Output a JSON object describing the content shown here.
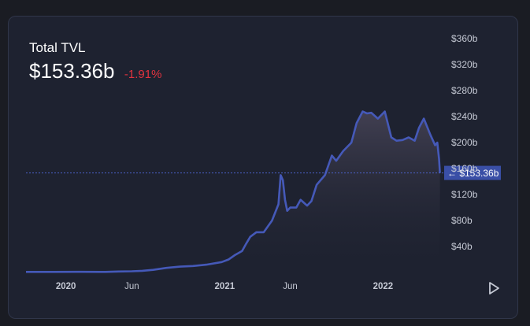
{
  "header": {
    "title": "Total TVL",
    "value": "$153.36b",
    "change": "-1.91%"
  },
  "controls": {
    "play_icon": "play-icon"
  },
  "colors": {
    "background": "#1e2230",
    "line": "#4559b8",
    "fill_top": "#484558",
    "negative": "#e0333f",
    "label_bg": "#3a4fa6",
    "text_muted": "#c5c9d4"
  },
  "chart_data": {
    "type": "area",
    "title": "Total TVL",
    "xlabel": "",
    "ylabel": "",
    "x_tick_labels": [
      "2020",
      "Jun",
      "2021",
      "Jun",
      "2022"
    ],
    "x_ticks": [
      "2020-01-01",
      "2020-06-01",
      "2021-01-01",
      "2021-06-01",
      "2022-01-01"
    ],
    "y_tick_labels": [
      "$40b",
      "$80b",
      "$120b",
      "$160b",
      "$200b",
      "$240b",
      "$280b",
      "$320b",
      "$360b"
    ],
    "y_ticks": [
      40,
      80,
      120,
      160,
      200,
      240,
      280,
      320,
      360
    ],
    "ylim": [
      0,
      370
    ],
    "xlim": [
      "2019-10-01",
      "2022-05-20"
    ],
    "current_value": 153.36,
    "current_label": "$153.36b",
    "grid": false,
    "series": [
      {
        "x": [
          "2019-10-01",
          "2019-12-01",
          "2020-02-01",
          "2020-04-01",
          "2020-05-01",
          "2020-06-01",
          "2020-06-25",
          "2020-07-20",
          "2020-08-20",
          "2020-09-20",
          "2020-10-20",
          "2020-11-20",
          "2020-12-25",
          "2021-01-10",
          "2021-01-25",
          "2021-02-10",
          "2021-02-20",
          "2021-03-01",
          "2021-03-15",
          "2021-04-01",
          "2021-04-20",
          "2021-05-05",
          "2021-05-10",
          "2021-05-15",
          "2021-05-20",
          "2021-05-25",
          "2021-06-01",
          "2021-06-15",
          "2021-06-25",
          "2021-07-10",
          "2021-07-20",
          "2021-08-01",
          "2021-08-20",
          "2021-09-05",
          "2021-09-15",
          "2021-10-01",
          "2021-10-20",
          "2021-11-01",
          "2021-11-15",
          "2021-11-25",
          "2021-12-05",
          "2021-12-20",
          "2022-01-05",
          "2022-01-20",
          "2022-02-01",
          "2022-02-15",
          "2022-03-01",
          "2022-03-15",
          "2022-03-25",
          "2022-04-05",
          "2022-04-20",
          "2022-05-01",
          "2022-05-06",
          "2022-05-10",
          "2022-05-12"
        ],
        "y": [
          0.8,
          0.9,
          1.0,
          0.9,
          1.5,
          1.8,
          2.5,
          4.0,
          7.0,
          9.0,
          10.0,
          12.0,
          16.0,
          20.0,
          27.0,
          33.0,
          45.0,
          55.0,
          62.0,
          62.0,
          80.0,
          105.0,
          150.0,
          142.0,
          112.0,
          95.0,
          100.0,
          100.0,
          112.0,
          103.0,
          110.0,
          135.0,
          150.0,
          180.0,
          172.0,
          187.0,
          200.0,
          230.0,
          248.0,
          245.0,
          246.0,
          237.0,
          248.0,
          208.0,
          203.0,
          204.0,
          208.0,
          203.0,
          223.0,
          237.0,
          212.0,
          196.0,
          200.0,
          175.0,
          153.36
        ]
      }
    ]
  }
}
